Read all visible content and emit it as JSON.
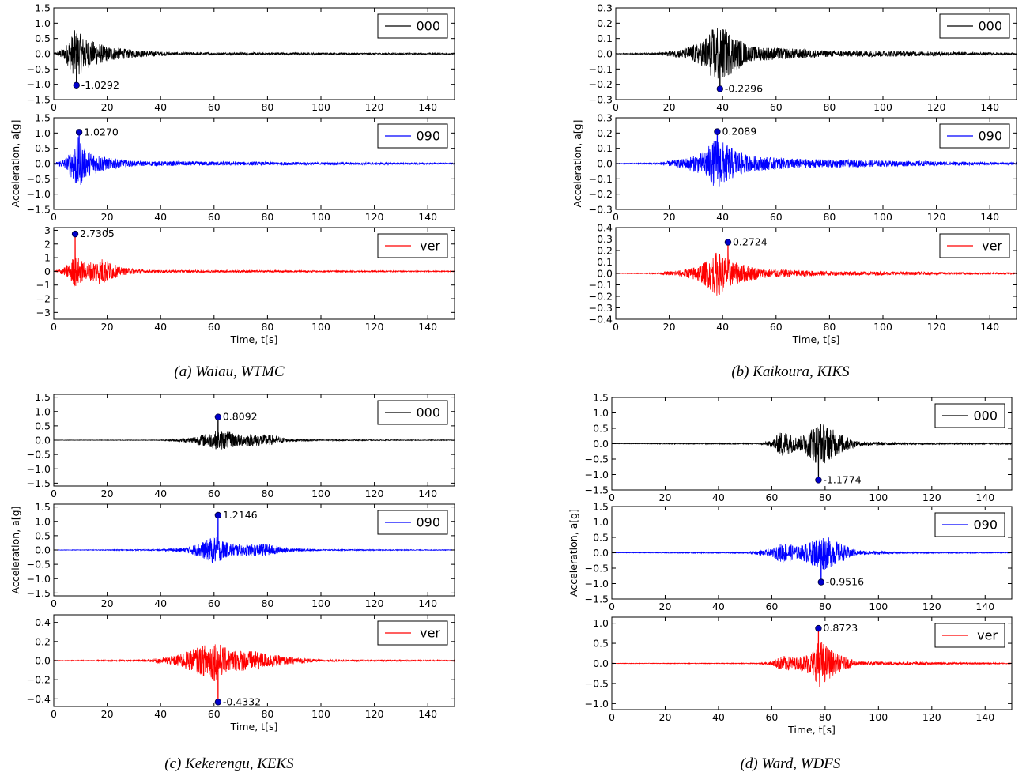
{
  "chart_data": [
    {
      "type": "line",
      "caption": "(a) Waiau, WTMC",
      "xlabel": "Time, t[s]",
      "ylabel": "Acceleration, a[g]",
      "xlim": [
        0,
        150
      ],
      "xticks": [
        0,
        20,
        40,
        60,
        80,
        100,
        120,
        140
      ],
      "legend_position": "top-right",
      "grid": false,
      "panels": [
        {
          "name": "000",
          "color": "#000000",
          "ylim": [
            -1.5,
            1.5
          ],
          "yticks": [
            -1.5,
            -1.0,
            -0.5,
            0.0,
            0.5,
            1.0,
            1.5
          ],
          "ytick_labels": [
            "−1.5",
            "−1.0",
            "−0.5",
            "0.0",
            "0.5",
            "1.0",
            "1.5"
          ],
          "peak": {
            "t": 8.5,
            "value": -1.0292,
            "label": "-1.0292"
          },
          "envelope": [
            [
              0,
              0.01
            ],
            [
              4,
              0.2
            ],
            [
              8,
              0.8
            ],
            [
              12,
              0.5
            ],
            [
              20,
              0.25
            ],
            [
              30,
              0.12
            ],
            [
              45,
              0.05
            ],
            [
              150,
              0.02
            ]
          ]
        },
        {
          "name": "090",
          "color": "#0000ff",
          "ylim": [
            -1.5,
            1.5
          ],
          "yticks": [
            -1.5,
            -1.0,
            -0.5,
            0.0,
            0.5,
            1.0,
            1.5
          ],
          "ytick_labels": [
            "−1.5",
            "−1.0",
            "−0.5",
            "0.0",
            "0.5",
            "1.0",
            "1.5"
          ],
          "peak": {
            "t": 9.5,
            "value": 1.027,
            "label": "1.0270"
          },
          "envelope": [
            [
              0,
              0.01
            ],
            [
              5,
              0.2
            ],
            [
              9,
              0.9
            ],
            [
              12,
              0.45
            ],
            [
              20,
              0.2
            ],
            [
              30,
              0.08
            ],
            [
              150,
              0.02
            ]
          ]
        },
        {
          "name": "ver",
          "color": "#ff0000",
          "ylim": [
            -3.5,
            3.2
          ],
          "yticks": [
            -3,
            -2,
            -1,
            0,
            1,
            2,
            3
          ],
          "ytick_labels": [
            "−3",
            "−2",
            "−1",
            "0",
            "1",
            "2",
            "3"
          ],
          "peak": {
            "t": 8.0,
            "value": 2.7305,
            "label": "2.7305"
          },
          "envelope": [
            [
              0,
              0.01
            ],
            [
              4,
              0.3
            ],
            [
              8,
              1.2
            ],
            [
              12,
              0.6
            ],
            [
              18,
              1.0
            ],
            [
              25,
              0.3
            ],
            [
              35,
              0.1
            ],
            [
              150,
              0.03
            ]
          ]
        }
      ]
    },
    {
      "type": "line",
      "caption": "(b) Kaikōura, KIKS",
      "xlabel": "Time, t[s]",
      "ylabel": "Acceleration, a[g]",
      "xlim": [
        0,
        150
      ],
      "xticks": [
        0,
        20,
        40,
        60,
        80,
        100,
        120,
        140
      ],
      "legend_position": "top-right",
      "grid": false,
      "panels": [
        {
          "name": "000",
          "color": "#000000",
          "ylim": [
            -0.3,
            0.3
          ],
          "yticks": [
            -0.3,
            -0.2,
            -0.1,
            0.0,
            0.1,
            0.2,
            0.3
          ],
          "ytick_labels": [
            "−0.3",
            "−0.2",
            "−0.1",
            "0.0",
            "0.1",
            "0.2",
            "0.3"
          ],
          "peak": {
            "t": 39,
            "value": -0.2296,
            "label": "-0.2296"
          },
          "envelope": [
            [
              0,
              0.002
            ],
            [
              15,
              0.005
            ],
            [
              25,
              0.03
            ],
            [
              32,
              0.08
            ],
            [
              38,
              0.2
            ],
            [
              42,
              0.15
            ],
            [
              50,
              0.05
            ],
            [
              65,
              0.035
            ],
            [
              80,
              0.02
            ],
            [
              100,
              0.02
            ],
            [
              150,
              0.006
            ]
          ]
        },
        {
          "name": "090",
          "color": "#0000ff",
          "ylim": [
            -0.3,
            0.3
          ],
          "yticks": [
            -0.3,
            -0.2,
            -0.1,
            0.0,
            0.1,
            0.2,
            0.3
          ],
          "ytick_labels": [
            "−0.3",
            "−0.2",
            "−0.1",
            "0.0",
            "0.1",
            "0.2",
            "0.3"
          ],
          "peak": {
            "t": 38,
            "value": 0.2089,
            "label": "0.2089"
          },
          "envelope": [
            [
              0,
              0.002
            ],
            [
              15,
              0.005
            ],
            [
              25,
              0.03
            ],
            [
              32,
              0.07
            ],
            [
              38,
              0.17
            ],
            [
              42,
              0.12
            ],
            [
              50,
              0.05
            ],
            [
              70,
              0.03
            ],
            [
              100,
              0.02
            ],
            [
              150,
              0.006
            ]
          ]
        },
        {
          "name": "ver",
          "color": "#ff0000",
          "ylim": [
            -0.4,
            0.4
          ],
          "yticks": [
            -0.4,
            -0.3,
            -0.2,
            -0.1,
            0.0,
            0.1,
            0.2,
            0.3,
            0.4
          ],
          "ytick_labels": [
            "−0.4",
            "−0.3",
            "−0.2",
            "−0.1",
            "0.0",
            "0.1",
            "0.2",
            "0.3",
            "0.4"
          ],
          "peak": {
            "t": 42,
            "value": 0.2724,
            "label": "0.2724"
          },
          "envelope": [
            [
              0,
              0.002
            ],
            [
              15,
              0.004
            ],
            [
              25,
              0.03
            ],
            [
              32,
              0.08
            ],
            [
              38,
              0.2
            ],
            [
              44,
              0.1
            ],
            [
              55,
              0.04
            ],
            [
              80,
              0.02
            ],
            [
              150,
              0.006
            ]
          ]
        }
      ]
    },
    {
      "type": "line",
      "caption": "(c) Kekerengu, KEKS",
      "xlabel": "Time, t[s]",
      "ylabel": "Acceleration, a[g]",
      "xlim": [
        0,
        150
      ],
      "xticks": [
        0,
        20,
        40,
        60,
        80,
        100,
        120,
        140
      ],
      "legend_position": "top-right",
      "grid": false,
      "panels": [
        {
          "name": "000",
          "color": "#000000",
          "ylim": [
            -1.6,
            1.6
          ],
          "yticks": [
            -1.5,
            -1.0,
            -0.5,
            0.0,
            0.5,
            1.0,
            1.5
          ],
          "ytick_labels": [
            "−1.5",
            "−1.0",
            "−0.5",
            "0.0",
            "0.5",
            "1.0",
            "1.5"
          ],
          "peak": {
            "t": 61.5,
            "value": 0.8092,
            "label": "0.8092"
          },
          "envelope": [
            [
              0,
              0.005
            ],
            [
              40,
              0.01
            ],
            [
              50,
              0.08
            ],
            [
              58,
              0.25
            ],
            [
              62,
              0.35
            ],
            [
              70,
              0.22
            ],
            [
              80,
              0.2
            ],
            [
              88,
              0.05
            ],
            [
              100,
              0.02
            ],
            [
              150,
              0.01
            ]
          ]
        },
        {
          "name": "090",
          "color": "#0000ff",
          "ylim": [
            -1.6,
            1.6
          ],
          "yticks": [
            -1.5,
            -1.0,
            -0.5,
            0.0,
            0.5,
            1.0,
            1.5
          ],
          "ytick_labels": [
            "−1.5",
            "−1.0",
            "−0.5",
            "0.0",
            "0.5",
            "1.0",
            "1.5"
          ],
          "peak": {
            "t": 61.5,
            "value": 1.2146,
            "label": "1.2146"
          },
          "envelope": [
            [
              0,
              0.005
            ],
            [
              40,
              0.02
            ],
            [
              50,
              0.1
            ],
            [
              56,
              0.3
            ],
            [
              60,
              0.5
            ],
            [
              65,
              0.25
            ],
            [
              72,
              0.2
            ],
            [
              80,
              0.22
            ],
            [
              88,
              0.06
            ],
            [
              100,
              0.02
            ],
            [
              150,
              0.01
            ]
          ]
        },
        {
          "name": "ver",
          "color": "#ff0000",
          "ylim": [
            -0.48,
            0.48
          ],
          "yticks": [
            -0.4,
            -0.2,
            0.0,
            0.2,
            0.4
          ],
          "ytick_labels": [
            "−0.4",
            "−0.2",
            "0.0",
            "0.2",
            "0.4"
          ],
          "peak": {
            "t": 61.5,
            "value": -0.4332,
            "label": "-0.4332"
          },
          "envelope": [
            [
              0,
              0.003
            ],
            [
              35,
              0.01
            ],
            [
              45,
              0.05
            ],
            [
              55,
              0.15
            ],
            [
              60,
              0.22
            ],
            [
              65,
              0.12
            ],
            [
              75,
              0.1
            ],
            [
              85,
              0.05
            ],
            [
              100,
              0.01
            ],
            [
              150,
              0.005
            ]
          ]
        }
      ]
    },
    {
      "type": "line",
      "caption": "(d) Ward, WDFS",
      "xlabel": "Time, t[s]",
      "ylabel": "Acceleration, a[g]",
      "xlim": [
        0,
        150
      ],
      "xticks": [
        0,
        20,
        40,
        60,
        80,
        100,
        120,
        140
      ],
      "legend_position": "top-right",
      "grid": false,
      "panels": [
        {
          "name": "000",
          "color": "#000000",
          "ylim": [
            -1.5,
            1.5
          ],
          "yticks": [
            -1.5,
            -1.0,
            -0.5,
            0.0,
            0.5,
            1.0,
            1.5
          ],
          "ytick_labels": [
            "−1.5",
            "−1.0",
            "−0.5",
            "0.0",
            "0.5",
            "1.0",
            "1.5"
          ],
          "peak": {
            "t": 77.5,
            "value": -1.1774,
            "label": "-1.1774"
          },
          "envelope": [
            [
              0,
              0.005
            ],
            [
              55,
              0.02
            ],
            [
              60,
              0.1
            ],
            [
              64,
              0.45
            ],
            [
              70,
              0.2
            ],
            [
              74,
              0.45
            ],
            [
              78,
              0.75
            ],
            [
              85,
              0.35
            ],
            [
              92,
              0.08
            ],
            [
              110,
              0.03
            ],
            [
              150,
              0.02
            ]
          ]
        },
        {
          "name": "090",
          "color": "#0000ff",
          "ylim": [
            -1.5,
            1.5
          ],
          "yticks": [
            -1.5,
            -1.0,
            -0.5,
            0.0,
            0.5,
            1.0,
            1.5
          ],
          "ytick_labels": [
            "−1.5",
            "−1.0",
            "−0.5",
            "0.0",
            "0.5",
            "1.0",
            "1.5"
          ],
          "peak": {
            "t": 78.5,
            "value": -0.9516,
            "label": "-0.9516"
          },
          "envelope": [
            [
              0,
              0.005
            ],
            [
              50,
              0.02
            ],
            [
              60,
              0.12
            ],
            [
              64,
              0.35
            ],
            [
              70,
              0.2
            ],
            [
              75,
              0.4
            ],
            [
              79,
              0.6
            ],
            [
              86,
              0.3
            ],
            [
              92,
              0.08
            ],
            [
              110,
              0.02
            ],
            [
              150,
              0.01
            ]
          ]
        },
        {
          "name": "ver",
          "color": "#ff0000",
          "ylim": [
            -1.15,
            1.15
          ],
          "yticks": [
            -1.0,
            -0.5,
            0.0,
            0.5,
            1.0
          ],
          "ytick_labels": [
            "−1.0",
            "−0.5",
            "0.0",
            "0.5",
            "1.0"
          ],
          "peak": {
            "t": 77.5,
            "value": 0.8723,
            "label": "0.8723"
          },
          "envelope": [
            [
              0,
              0.005
            ],
            [
              55,
              0.01
            ],
            [
              60,
              0.05
            ],
            [
              64,
              0.2
            ],
            [
              70,
              0.15
            ],
            [
              75,
              0.3
            ],
            [
              78,
              0.6
            ],
            [
              84,
              0.25
            ],
            [
              92,
              0.05
            ],
            [
              150,
              0.01
            ]
          ]
        }
      ]
    }
  ]
}
